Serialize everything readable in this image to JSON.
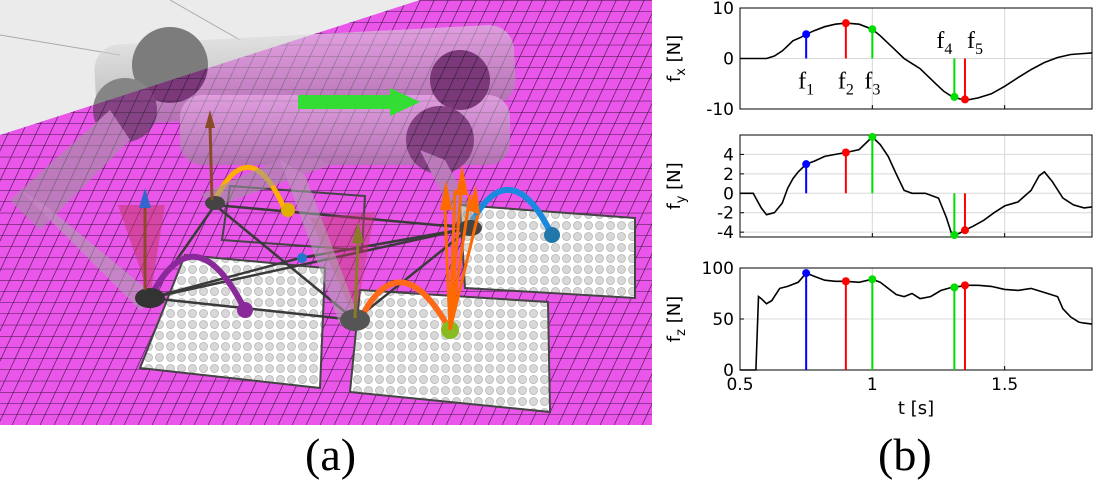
{
  "captions": {
    "a": "(a)",
    "b": "(b)"
  },
  "colors": {
    "ground": "#ea55ea",
    "ground_grid": "#2a1030",
    "blue": "#0000ff",
    "red": "#ff0000",
    "green": "#00ff00",
    "orange": "#ff7a00",
    "purple": "#8a2a9a",
    "yellow_arc": "#ffb000",
    "blue_arc": "#1a8ae0",
    "plan_arrow": "#33dd33"
  },
  "scene": {
    "description_labels": []
  },
  "chart_data": [
    {
      "type": "line",
      "ylabel_base": "f",
      "ylabel_sub": "x",
      "ylabel_unit": "[N]",
      "ylim": [
        -10,
        10
      ],
      "yticks": [
        {
          "v": -10,
          "label": "-10"
        },
        {
          "v": 0,
          "label": "0"
        },
        {
          "v": 10,
          "label": "10"
        }
      ],
      "xlim": [
        0.5,
        1.83
      ],
      "grid": true,
      "series": [
        {
          "color": "#000000",
          "x": [
            0.5,
            0.55,
            0.6,
            0.63,
            0.66,
            0.68,
            0.7,
            0.73,
            0.75,
            0.78,
            0.82,
            0.86,
            0.9,
            0.95,
            1.0,
            1.03,
            1.06,
            1.09,
            1.12,
            1.15,
            1.18,
            1.21,
            1.24,
            1.27,
            1.3,
            1.33,
            1.36,
            1.4,
            1.45,
            1.5,
            1.55,
            1.6,
            1.65,
            1.7,
            1.75,
            1.8,
            1.83
          ],
          "y": [
            0,
            0,
            0,
            0.5,
            1.5,
            2.5,
            3.5,
            4.2,
            4.8,
            5.5,
            6.3,
            6.8,
            7.0,
            6.8,
            5.8,
            4.5,
            3,
            1.5,
            0,
            -1,
            -2,
            -3.5,
            -5,
            -6.5,
            -7.5,
            -8.0,
            -8.2,
            -7.8,
            -7,
            -5.5,
            -3.8,
            -2.2,
            -0.8,
            0.2,
            0.8,
            1.0,
            1.1
          ]
        }
      ],
      "markers": [
        {
          "t": 0.75,
          "v": 4.8,
          "color": "#0000ff",
          "label": "f",
          "sub": "1"
        },
        {
          "t": 0.9,
          "v": 7.0,
          "color": "#ff0000",
          "label": "f",
          "sub": "2"
        },
        {
          "t": 1.0,
          "v": 5.8,
          "color": "#00dd00",
          "label": "f",
          "sub": "3"
        },
        {
          "t": 1.31,
          "v": -7.6,
          "color": "#00dd00",
          "label": "f",
          "sub": "4"
        },
        {
          "t": 1.35,
          "v": -8.1,
          "color": "#ff0000",
          "label": "f",
          "sub": "5"
        }
      ]
    },
    {
      "type": "line",
      "ylabel_base": "f",
      "ylabel_sub": "y",
      "ylabel_unit": "[N]",
      "ylim": [
        -4.5,
        6
      ],
      "yticks": [
        {
          "v": -4,
          "label": "-4"
        },
        {
          "v": -2,
          "label": "-2"
        },
        {
          "v": 0,
          "label": "0"
        },
        {
          "v": 2,
          "label": "2"
        },
        {
          "v": 4,
          "label": "4"
        }
      ],
      "xlim": [
        0.5,
        1.83
      ],
      "grid": true,
      "series": [
        {
          "color": "#000000",
          "x": [
            0.5,
            0.55,
            0.58,
            0.6,
            0.63,
            0.66,
            0.68,
            0.7,
            0.72,
            0.75,
            0.78,
            0.82,
            0.86,
            0.9,
            0.95,
            1.0,
            1.03,
            1.06,
            1.09,
            1.12,
            1.15,
            1.2,
            1.25,
            1.28,
            1.3,
            1.31,
            1.33,
            1.35,
            1.38,
            1.42,
            1.46,
            1.5,
            1.55,
            1.6,
            1.63,
            1.65,
            1.68,
            1.72,
            1.76,
            1.8,
            1.83
          ],
          "y": [
            0,
            0,
            -1.5,
            -2.2,
            -2,
            -1,
            0.5,
            1.5,
            2.2,
            3.0,
            3.3,
            3.8,
            4.0,
            4.2,
            4.5,
            5.8,
            5.0,
            3.8,
            2.0,
            0.3,
            0,
            0,
            -0.5,
            -2.5,
            -4.2,
            -4.3,
            -4.1,
            -3.8,
            -3.4,
            -2.8,
            -2.0,
            -1.3,
            -0.9,
            0.3,
            1.8,
            2.2,
            1.2,
            -0.5,
            -1.2,
            -1.5,
            -1.4
          ]
        }
      ],
      "markers": [
        {
          "t": 0.75,
          "v": 3.0,
          "color": "#0000ff"
        },
        {
          "t": 0.9,
          "v": 4.2,
          "color": "#ff0000"
        },
        {
          "t": 1.0,
          "v": 5.8,
          "color": "#00dd00"
        },
        {
          "t": 1.31,
          "v": -4.3,
          "color": "#00dd00"
        },
        {
          "t": 1.35,
          "v": -3.8,
          "color": "#ff0000"
        }
      ]
    },
    {
      "type": "line",
      "ylabel_base": "f",
      "ylabel_sub": "z",
      "ylabel_unit": "[N]",
      "ylim": [
        0,
        100
      ],
      "yticks": [
        {
          "v": 0,
          "label": "0"
        },
        {
          "v": 50,
          "label": "50"
        },
        {
          "v": 100,
          "label": "100"
        }
      ],
      "xlim": [
        0.5,
        1.83
      ],
      "grid": true,
      "xticks": [
        {
          "v": 0.5,
          "label": "0.5"
        },
        {
          "v": 1.0,
          "label": "1"
        },
        {
          "v": 1.5,
          "label": "1.5"
        }
      ],
      "xlabel": "t [s]",
      "series": [
        {
          "color": "#000000",
          "x": [
            0.5,
            0.56,
            0.57,
            0.58,
            0.6,
            0.62,
            0.65,
            0.68,
            0.72,
            0.75,
            0.78,
            0.82,
            0.86,
            0.9,
            0.95,
            1.0,
            1.03,
            1.06,
            1.09,
            1.12,
            1.15,
            1.18,
            1.22,
            1.26,
            1.3,
            1.33,
            1.36,
            1.4,
            1.45,
            1.5,
            1.55,
            1.6,
            1.65,
            1.7,
            1.72,
            1.75,
            1.78,
            1.8,
            1.83
          ],
          "y": [
            0,
            0,
            72,
            70,
            65,
            68,
            80,
            82,
            86,
            95,
            92,
            88,
            87,
            87,
            86,
            89,
            86,
            80,
            74,
            72,
            75,
            70,
            72,
            78,
            81,
            82,
            83,
            83,
            82,
            79,
            78,
            80,
            76,
            72,
            60,
            52,
            47,
            46,
            45
          ]
        }
      ],
      "markers": [
        {
          "t": 0.75,
          "v": 95,
          "color": "#0000ff"
        },
        {
          "t": 0.9,
          "v": 87,
          "color": "#ff0000"
        },
        {
          "t": 1.0,
          "v": 89,
          "color": "#00dd00"
        },
        {
          "t": 1.31,
          "v": 81,
          "color": "#00dd00"
        },
        {
          "t": 1.35,
          "v": 83,
          "color": "#ff0000"
        }
      ]
    }
  ]
}
